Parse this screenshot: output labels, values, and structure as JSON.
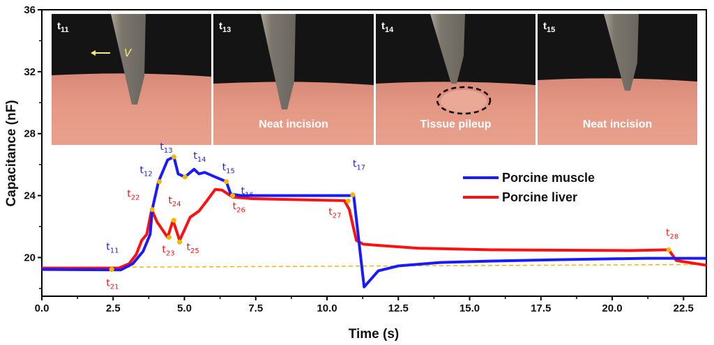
{
  "chart_data": {
    "type": "line",
    "title": "",
    "xlabel": "Time (s)",
    "ylabel": "Capacitance (nF)",
    "xlim": [
      0,
      23.3
    ],
    "ylim": [
      17.5,
      36
    ],
    "xticks": [
      0.0,
      2.5,
      5.0,
      7.5,
      10.0,
      12.5,
      15.0,
      17.5,
      20.0,
      22.5
    ],
    "xtick_labels": [
      "0.0",
      "2.5",
      "5.0",
      "7.5",
      "10.0",
      "12.5",
      "15.0",
      "17.5",
      "20.0",
      "22.5"
    ],
    "yticks": [
      20,
      24,
      28,
      32,
      36
    ],
    "ytick_labels": [
      "20",
      "24",
      "28",
      "32",
      "36"
    ],
    "grid": false,
    "legend_position": "center-right",
    "series": [
      {
        "name": "Porcine muscle",
        "color": "#1a1aff",
        "x": [
          0,
          2.77,
          3.19,
          3.55,
          3.8,
          3.87,
          4.09,
          4.41,
          4.63,
          4.78,
          5.02,
          5.34,
          5.51,
          5.71,
          6.08,
          6.47,
          6.62,
          6.99,
          8.33,
          10.8,
          10.93,
          11.3,
          11.8,
          12.5,
          13.97,
          15.7,
          18.1,
          21.2,
          23.3
        ],
        "y": [
          19.23,
          19.2,
          19.6,
          20.4,
          21.5,
          23.1,
          24.9,
          26.3,
          26.5,
          25.4,
          25.2,
          25.7,
          25.4,
          25.5,
          25.2,
          24.9,
          24.1,
          24.0,
          24.0,
          24.0,
          24.05,
          18.1,
          19.14,
          19.46,
          19.68,
          19.77,
          19.86,
          19.95,
          19.95
        ],
        "markers": [
          {
            "label": "t",
            "sub": "11",
            "x": 2.45,
            "y": 19.23
          },
          {
            "label": "t",
            "sub": "12",
            "x": 4.12,
            "y": 24.9
          },
          {
            "label": "t",
            "sub": "13",
            "x": 4.63,
            "y": 26.5
          },
          {
            "label": "t",
            "sub": "14",
            "x": 5.02,
            "y": 25.2
          },
          {
            "label": "t",
            "sub": "15",
            "x": 6.47,
            "y": 24.9
          },
          {
            "label": "t",
            "sub": "16",
            "x": 6.69,
            "y": 24.0
          },
          {
            "label": "t",
            "sub": "17",
            "x": 10.9,
            "y": 24.05
          }
        ]
      },
      {
        "name": "Porcine liver",
        "color": "#ff1010",
        "x": [
          0,
          2.7,
          3.06,
          3.31,
          3.5,
          3.68,
          3.85,
          4.04,
          4.41,
          4.6,
          4.83,
          5.2,
          5.51,
          5.76,
          6.08,
          6.32,
          6.69,
          7.35,
          10.61,
          10.78,
          11.03,
          11.27,
          11.9,
          13.2,
          15.7,
          20.6,
          21.98,
          22.25,
          23.3
        ],
        "y": [
          19.32,
          19.32,
          19.6,
          20.2,
          21.1,
          21.5,
          23.1,
          22.3,
          21.3,
          22.4,
          21.1,
          22.6,
          23.0,
          23.6,
          24.4,
          24.35,
          23.9,
          23.8,
          23.67,
          23.1,
          21.1,
          20.86,
          20.77,
          20.6,
          20.5,
          20.45,
          20.5,
          19.8,
          19.5
        ],
        "markers": [
          {
            "label": "t",
            "sub": "21",
            "x": 2.45,
            "y": 19.23
          },
          {
            "label": "t",
            "sub": "22",
            "x": 3.87,
            "y": 23.1
          },
          {
            "label": "t",
            "sub": "23",
            "x": 4.46,
            "y": 21.3
          },
          {
            "label": "t",
            "sub": "24",
            "x": 4.63,
            "y": 22.4
          },
          {
            "label": "t",
            "sub": "25",
            "x": 4.83,
            "y": 21.0
          },
          {
            "label": "t",
            "sub": "26",
            "x": 6.69,
            "y": 24.0
          },
          {
            "label": "t",
            "sub": "27",
            "x": 10.74,
            "y": 23.65
          },
          {
            "label": "t",
            "sub": "28",
            "x": 21.98,
            "y": 20.5
          }
        ]
      }
    ],
    "baseline": {
      "color": "#f5b800",
      "x": [
        0,
        23.3
      ],
      "y": [
        19.35,
        19.55
      ]
    },
    "marker_color": "#f5b800",
    "photo_panels": [
      {
        "time_label": "t",
        "time_sub": "11",
        "caption": "",
        "arrow_label": "V"
      },
      {
        "time_label": "t",
        "time_sub": "13",
        "caption": "Neat incision"
      },
      {
        "time_label": "t",
        "time_sub": "14",
        "caption": "Tissue pileup"
      },
      {
        "time_label": "t",
        "time_sub": "15",
        "caption": "Neat incision"
      }
    ]
  }
}
